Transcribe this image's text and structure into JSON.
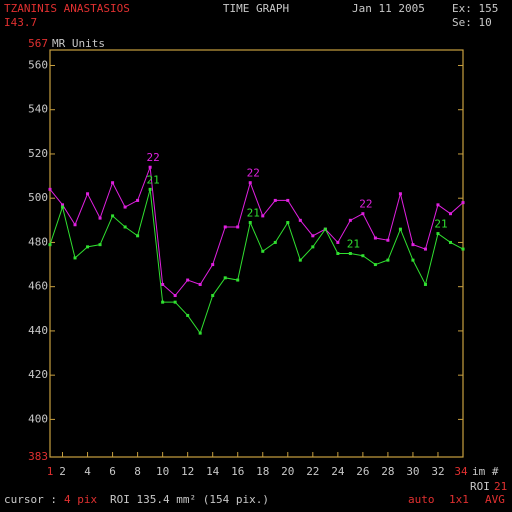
{
  "header": {
    "patient": "TZANINIS ANASTASIOS",
    "id": "I43.7",
    "title": "TIME GRAPH",
    "date": "Jan 11 2005",
    "exam": "Ex: 155",
    "series": "Se: 10"
  },
  "chart_data": {
    "type": "line",
    "y_label": "MR Units",
    "x_label": "im #",
    "ylim": [
      383,
      567
    ],
    "yticks": [
      400,
      420,
      440,
      460,
      480,
      500,
      520,
      540,
      560
    ],
    "xlim": [
      1,
      34
    ],
    "xticks": [
      2,
      4,
      6,
      8,
      10,
      12,
      14,
      16,
      18,
      20,
      22,
      24,
      26,
      28,
      30,
      32
    ],
    "x": [
      1,
      2,
      3,
      4,
      5,
      6,
      7,
      8,
      9,
      10,
      11,
      12,
      13,
      14,
      15,
      16,
      17,
      18,
      19,
      20,
      21,
      22,
      23,
      24,
      25,
      26,
      27,
      28,
      29,
      30,
      31,
      32,
      33,
      34
    ],
    "series": [
      {
        "name": "22",
        "color": "#e020e0",
        "label_x": [
          9,
          17,
          26
        ],
        "values": [
          504,
          497,
          488,
          502,
          491,
          507,
          496,
          499,
          514,
          461,
          456,
          463,
          461,
          470,
          487,
          487,
          507,
          492,
          499,
          499,
          490,
          483,
          486,
          480,
          490,
          493,
          482,
          481,
          502,
          479,
          477,
          497,
          493,
          498
        ]
      },
      {
        "name": "21",
        "color": "#30e030",
        "label_x": [
          9,
          17,
          25,
          32
        ],
        "values": [
          479,
          496,
          473,
          478,
          479,
          492,
          487,
          483,
          504,
          453,
          453,
          447,
          439,
          456,
          464,
          463,
          489,
          476,
          480,
          489,
          472,
          478,
          486,
          475,
          475,
          474,
          470,
          472,
          486,
          472,
          461,
          484,
          480,
          477
        ]
      }
    ]
  },
  "roi": {
    "label": "ROI",
    "number": "21"
  },
  "footer": {
    "cursor": "cursor :",
    "cursor_value": "4 pix",
    "roi": "ROI 135.4 mm² (154 pix.)",
    "mode": "auto",
    "zoom": "1x1",
    "avg": "AVG"
  }
}
